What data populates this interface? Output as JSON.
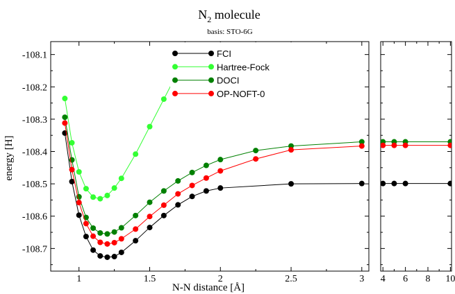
{
  "chart_data": {
    "type": "line",
    "title": "N",
    "title_subscript": "2",
    "title_suffix": " molecule",
    "subtitle": "basis: STO-6G",
    "xlabel": "N-N distance [Å]",
    "ylabel": "energy [H]",
    "ylim": [
      -108.77,
      -108.06
    ],
    "y_ticks": [
      "-108.1",
      "-108.2",
      "-108.3",
      "-108.4",
      "-108.5",
      "-108.6",
      "-108.7"
    ],
    "panels": [
      {
        "xlim": [
          0.8,
          3.05
        ],
        "x_ticks": [
          "1",
          "1.5",
          "2",
          "2.5",
          "3"
        ],
        "x_tick_values": [
          1,
          1.5,
          2,
          2.5,
          3
        ]
      },
      {
        "xlim": [
          3.8,
          10.1
        ],
        "x_ticks": [
          "4",
          "6",
          "8",
          "10"
        ],
        "x_tick_values": [
          4,
          6,
          8,
          10
        ]
      }
    ],
    "legend_position": "top-center",
    "series": [
      {
        "name": "FCI",
        "color": "#000000",
        "x": [
          0.9,
          0.95,
          1.0,
          1.05,
          1.1,
          1.15,
          1.2,
          1.25,
          1.3,
          1.4,
          1.5,
          1.6,
          1.7,
          1.8,
          1.9,
          2.0,
          2.5,
          3.0,
          4.0,
          5.0,
          6.0,
          10.0
        ],
        "y": [
          -108.343,
          -108.493,
          -108.597,
          -108.663,
          -108.705,
          -108.723,
          -108.727,
          -108.725,
          -108.712,
          -108.676,
          -108.635,
          -108.598,
          -108.565,
          -108.539,
          -108.522,
          -108.513,
          -108.5,
          -108.499,
          -108.499,
          -108.499,
          -108.499,
          -108.499
        ]
      },
      {
        "name": "Hartree-Fock",
        "color": "#33ff33",
        "x": [
          0.9,
          0.95,
          1.0,
          1.05,
          1.1,
          1.15,
          1.2,
          1.25,
          1.3,
          1.4,
          1.5,
          1.6,
          1.7,
          1.8
        ],
        "y": [
          -108.236,
          -108.373,
          -108.463,
          -108.515,
          -108.541,
          -108.546,
          -108.536,
          -108.513,
          -108.483,
          -108.408,
          -108.323,
          -108.238,
          -108.153,
          -108.071
        ]
      },
      {
        "name": "DOCI",
        "color": "#008000",
        "x": [
          0.9,
          0.95,
          1.0,
          1.05,
          1.1,
          1.15,
          1.2,
          1.25,
          1.3,
          1.4,
          1.5,
          1.6,
          1.7,
          1.8,
          1.9,
          2.0,
          2.25,
          2.5,
          3.0,
          4.0,
          5.0,
          6.0,
          10.0
        ],
        "y": [
          -108.294,
          -108.426,
          -108.54,
          -108.604,
          -108.637,
          -108.652,
          -108.655,
          -108.649,
          -108.636,
          -108.598,
          -108.557,
          -108.522,
          -108.491,
          -108.465,
          -108.443,
          -108.425,
          -108.397,
          -108.383,
          -108.37,
          -108.37,
          -108.37,
          -108.37,
          -108.37
        ]
      },
      {
        "name": "OP-NOFT-0",
        "color": "#ff0000",
        "x": [
          0.9,
          0.95,
          1.0,
          1.05,
          1.1,
          1.15,
          1.2,
          1.25,
          1.3,
          1.4,
          1.5,
          1.6,
          1.7,
          1.8,
          1.9,
          2.0,
          2.25,
          2.5,
          3.0,
          4.0,
          5.0,
          6.0,
          10.0
        ],
        "y": [
          -108.312,
          -108.456,
          -108.558,
          -108.623,
          -108.662,
          -108.681,
          -108.686,
          -108.682,
          -108.67,
          -108.64,
          -108.601,
          -108.566,
          -108.531,
          -108.505,
          -108.482,
          -108.46,
          -108.423,
          -108.395,
          -108.383,
          -108.381,
          -108.381,
          -108.381,
          -108.381
        ]
      }
    ]
  }
}
